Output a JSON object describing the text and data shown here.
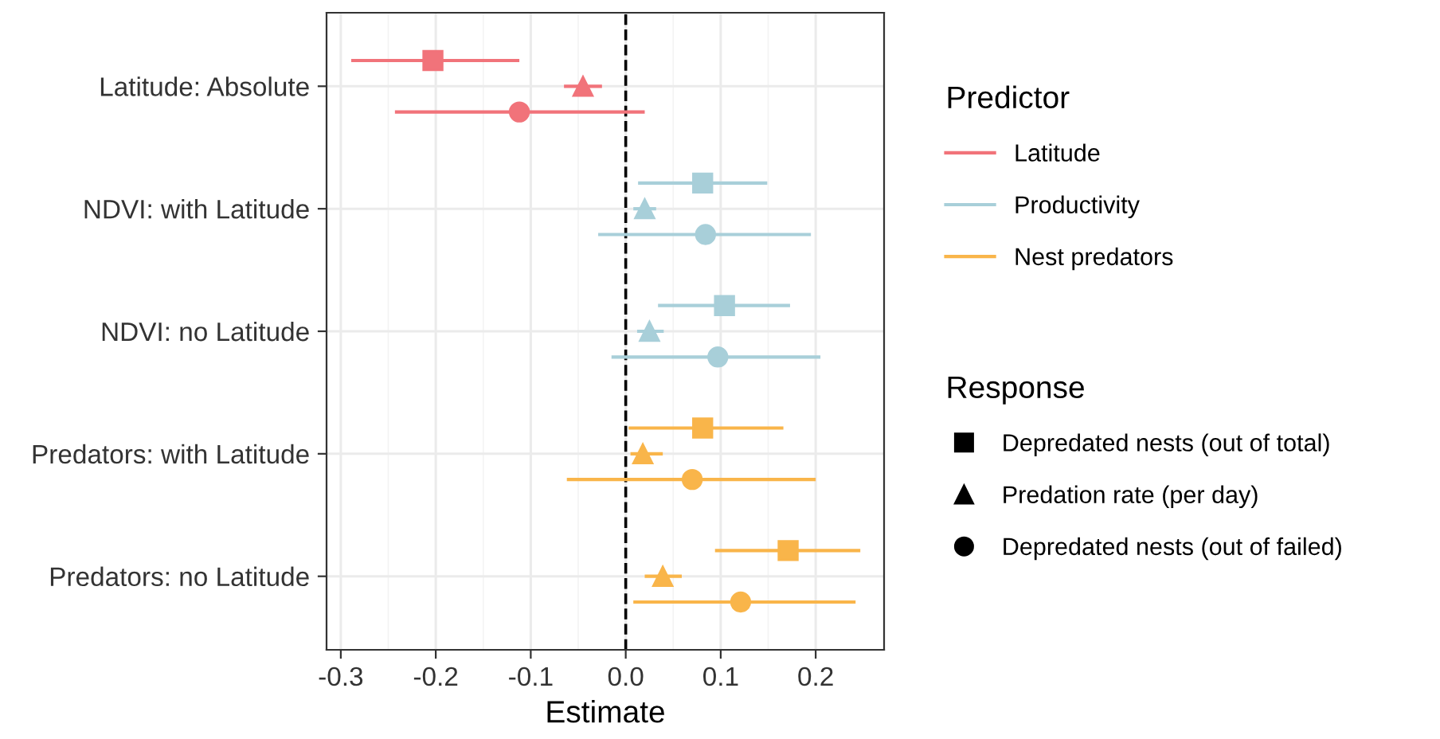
{
  "chart_data": {
    "type": "scatter",
    "xlabel": "Estimate",
    "categories": [
      "Latitude: Absolute",
      "NDVI: with Latitude",
      "NDVI: no Latitude",
      "Predators: with Latitude",
      "Predators: no Latitude"
    ],
    "legend_title": [
      "Predictor",
      "Response"
    ],
    "series": [
      {
        "name": "Latitude",
        "type": "line",
        "color": "#f1737a",
        "values": [
          null,
          null,
          null,
          null,
          null
        ]
      },
      {
        "name": "Productivity",
        "type": "line",
        "color": "#a8cfd9",
        "values": [
          null,
          null,
          null,
          null,
          null
        ]
      },
      {
        "name": "Nest predators",
        "type": "line",
        "color": "#f9b54a",
        "values": [
          null,
          null,
          null,
          null,
          null
        ]
      },
      {
        "name": "Depredated nests (out of total)",
        "marker": "square",
        "colors": [
          "#f1737a",
          "#a8cfd9",
          "#a8cfd9",
          "#f9b54a",
          "#f9b54a"
        ],
        "values": [
          -0.203,
          0.081,
          0.104,
          0.081,
          0.171
        ],
        "errors": [
          [
            -0.289,
            -0.112
          ],
          [
            0.013,
            0.149
          ],
          [
            0.034,
            0.173
          ],
          [
            0.003,
            0.166
          ],
          [
            0.094,
            0.247
          ]
        ]
      },
      {
        "name": "Predation rate (per day)",
        "marker": "triangle",
        "colors": [
          "#f1737a",
          "#a8cfd9",
          "#a8cfd9",
          "#f9b54a",
          "#f9b54a"
        ],
        "values": [
          -0.045,
          0.02,
          0.025,
          0.018,
          0.039
        ],
        "errors": [
          [
            -0.065,
            -0.025
          ],
          [
            0.008,
            0.032
          ],
          [
            0.012,
            0.04
          ],
          [
            0.005,
            0.039
          ],
          [
            0.02,
            0.059
          ]
        ]
      },
      {
        "name": "Depredated nests (out of failed)",
        "marker": "circle",
        "colors": [
          "#f1737a",
          "#a8cfd9",
          "#a8cfd9",
          "#f9b54a",
          "#f9b54a"
        ],
        "values": [
          -0.112,
          0.084,
          0.097,
          0.07,
          0.121
        ],
        "errors": [
          [
            -0.243,
            0.02
          ],
          [
            -0.029,
            0.195
          ],
          [
            -0.015,
            0.205
          ],
          [
            -0.062,
            0.2
          ],
          [
            0.008,
            0.242
          ]
        ]
      }
    ],
    "orientation": "horizontal",
    "xlim": [
      -0.315,
      0.272
    ],
    "xticks": [
      -0.3,
      -0.2,
      -0.1,
      {
        "value": 0,
        "label": "0.0"
      },
      0.1,
      0.2
    ],
    "ref_lines": [
      {
        "axis": "x",
        "value": 0,
        "line_style": "dashed",
        "color": "#000000"
      }
    ],
    "grid": true,
    "legend": "right"
  }
}
